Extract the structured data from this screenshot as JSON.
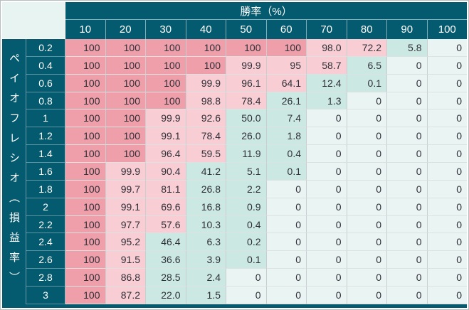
{
  "colors": {
    "header_bg": "#045a6e",
    "header_text": "#ffffff",
    "corner_bg": "#e8f4f2",
    "ruin_certain": "#ee9fa9",
    "ruin_high": "#f8ced4",
    "ruin_low": "#cbe8e3",
    "ruin_zero": "#eaf4f2",
    "cell_text": "#2f2f38",
    "grid_line_v": "#c9cfd1",
    "grid_line_h": "#dce1e1"
  },
  "chart_data": {
    "type": "heatmap",
    "title": "勝率（%）",
    "row_axis_label": "ペイオフレシオ（損益率）",
    "columns": [
      "10",
      "20",
      "30",
      "40",
      "50",
      "60",
      "70",
      "80",
      "90",
      "100"
    ],
    "rows": [
      "0.2",
      "0.4",
      "0.6",
      "0.8",
      "1",
      "1.2",
      "1.4",
      "1.6",
      "1.8",
      "2",
      "2.2",
      "2.4",
      "2.6",
      "2.8",
      "3"
    ],
    "values": [
      [
        "100",
        "100",
        "100",
        "100",
        "100",
        "100",
        "98.0",
        "72.2",
        "5.8",
        "0"
      ],
      [
        "100",
        "100",
        "100",
        "100",
        "99.9",
        "95",
        "58.7",
        "6.5",
        "0",
        "0"
      ],
      [
        "100",
        "100",
        "100",
        "99.9",
        "96.1",
        "64.1",
        "12.4",
        "0.1",
        "0",
        "0"
      ],
      [
        "100",
        "100",
        "100",
        "98.8",
        "78.4",
        "26.1",
        "1.3",
        "0",
        "0",
        "0"
      ],
      [
        "100",
        "100",
        "99.9",
        "92.6",
        "50.0",
        "7.4",
        "0",
        "0",
        "0",
        "0"
      ],
      [
        "100",
        "100",
        "99.1",
        "78.4",
        "26.0",
        "1.8",
        "0",
        "0",
        "0",
        "0"
      ],
      [
        "100",
        "100",
        "96.4",
        "59.5",
        "11.9",
        "0.4",
        "0",
        "0",
        "0",
        "0"
      ],
      [
        "100",
        "99.9",
        "90.4",
        "41.2",
        "5.1",
        "0.1",
        "0",
        "0",
        "0",
        "0"
      ],
      [
        "100",
        "99.7",
        "81.1",
        "26.8",
        "2.2",
        "0",
        "0",
        "0",
        "0",
        "0"
      ],
      [
        "100",
        "99.1",
        "69.6",
        "16.8",
        "0.9",
        "0",
        "0",
        "0",
        "0",
        "0"
      ],
      [
        "100",
        "97.7",
        "57.6",
        "10.3",
        "0.4",
        "0",
        "0",
        "0",
        "0",
        "0"
      ],
      [
        "100",
        "95.2",
        "46.4",
        "6.3",
        "0.2",
        "0",
        "0",
        "0",
        "0",
        "0"
      ],
      [
        "100",
        "91.5",
        "36.6",
        "3.9",
        "0.1",
        "0",
        "0",
        "0",
        "0",
        "0"
      ],
      [
        "100",
        "86.8",
        "28.5",
        "2.4",
        "0",
        "0",
        "0",
        "0",
        "0",
        "0"
      ],
      [
        "100",
        "87.2",
        "22.0",
        "1.5",
        "0",
        "0",
        "0",
        "0",
        "0",
        "0"
      ]
    ],
    "color_rule": {
      "equal_100": "ruin_certain",
      "above_50": "ruin_high",
      "above_0_to_50": "ruin_low",
      "equal_0": "ruin_zero"
    },
    "layout": {
      "grid": true,
      "column_header_position": "top",
      "row_header_position": "left",
      "values_alignment": "right"
    }
  }
}
